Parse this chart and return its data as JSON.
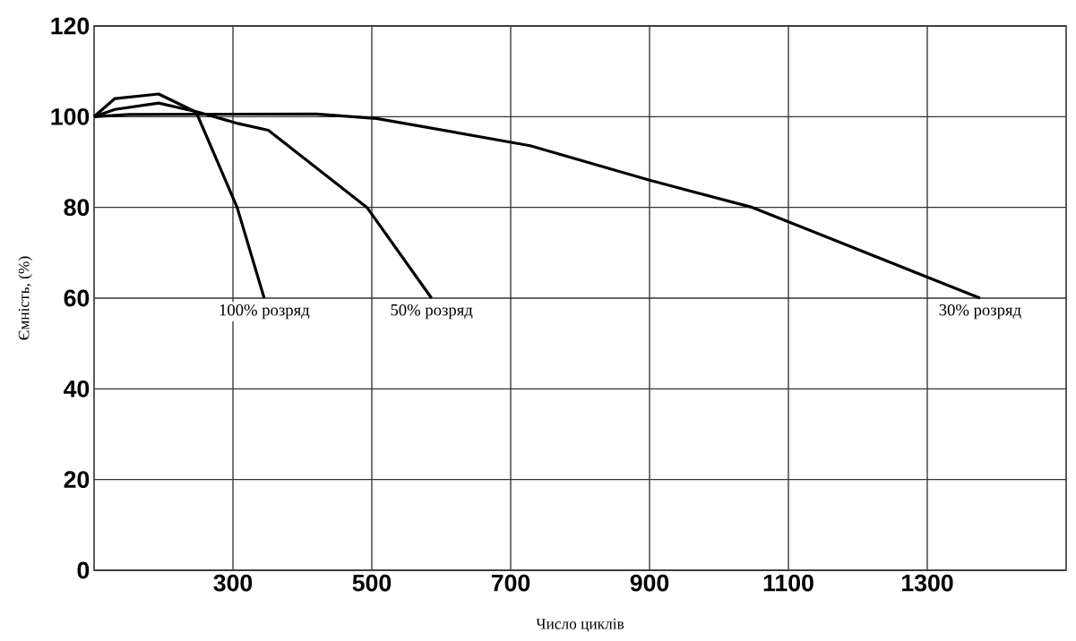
{
  "chart_data": {
    "type": "line",
    "xlabel": "Число циклів",
    "ylabel": "Ємність, (%)",
    "xlim": [
      100,
      1500
    ],
    "ylim": [
      0,
      120
    ],
    "xticks": [
      300,
      500,
      700,
      900,
      1100,
      1300
    ],
    "yticks": [
      0,
      20,
      40,
      60,
      80,
      100,
      120
    ],
    "grid": true,
    "series": [
      {
        "color": "#000000",
        "x": [
          100,
          130,
          193,
          247,
          306,
          345
        ],
        "values": [
          100,
          104,
          105,
          101,
          80,
          60
        ]
      },
      {
        "color": "#000000",
        "x": [
          100,
          130,
          193,
          250,
          307,
          351,
          493,
          586
        ],
        "values": [
          100,
          101.6,
          103,
          101,
          98.5,
          97,
          80,
          60
        ]
      },
      {
        "color": "#000000",
        "x": [
          100,
          150,
          420,
          507,
          728,
          900,
          1048,
          1376
        ],
        "values": [
          100,
          100.5,
          100.6,
          99.6,
          93.6,
          86,
          80,
          60
        ]
      }
    ],
    "annotations": [
      {
        "text": "100% розряд",
        "x": 345,
        "y": 60
      },
      {
        "text": "50% розряд",
        "x": 586,
        "y": 60
      },
      {
        "text": "30% розряд",
        "x": 1376,
        "y": 60
      }
    ]
  }
}
